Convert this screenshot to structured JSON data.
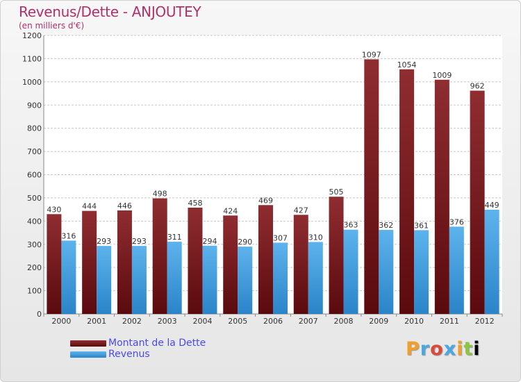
{
  "title": "Revenus/Dette - ANJOUTEY",
  "subtitle": "(en milliers d'€)",
  "logo_text": "Proxiti",
  "colors": {
    "title": "#b0306a",
    "dette": "#8c2226",
    "revenus": "#3d9de0",
    "legend_text": "#4a4ae6"
  },
  "legend": [
    {
      "label": "Montant de la Dette",
      "color": "#6b0f12"
    },
    {
      "label": "Revenus",
      "color": "#3d9de0"
    }
  ],
  "chart_data": {
    "type": "bar",
    "title": "Revenus/Dette - ANJOUTEY",
    "ylabel": "(en milliers d'€)",
    "xlabel": "",
    "categories": [
      "2000",
      "2001",
      "2002",
      "2003",
      "2004",
      "2005",
      "2006",
      "2007",
      "2008",
      "2009",
      "2010",
      "2011",
      "2012"
    ],
    "series": [
      {
        "name": "Montant de la Dette",
        "values": [
          430,
          444,
          446,
          498,
          458,
          424,
          469,
          427,
          505,
          1097,
          1054,
          1009,
          962
        ]
      },
      {
        "name": "Revenus",
        "values": [
          316,
          293,
          293,
          311,
          294,
          290,
          307,
          310,
          363,
          362,
          361,
          376,
          449
        ]
      }
    ],
    "ylim": [
      0,
      1200
    ],
    "yticks": [
      0,
      100,
      200,
      300,
      400,
      500,
      600,
      700,
      800,
      900,
      1000,
      1100,
      1200
    ],
    "grid": true,
    "legend_position": "bottom-left"
  }
}
